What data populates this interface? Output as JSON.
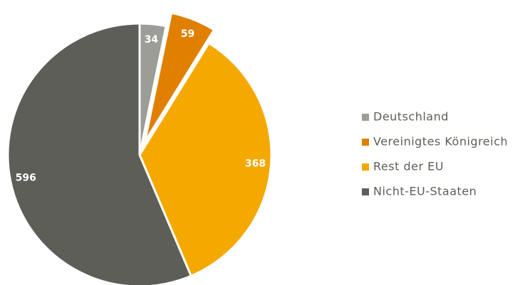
{
  "chart_data": {
    "type": "pie",
    "categories": [
      "Deutschland",
      "Vereinigtes Königreich",
      "Rest der EU",
      "Nicht-EU-Staaten"
    ],
    "values": [
      34,
      59,
      368,
      596
    ],
    "colors": [
      "#9d9d97",
      "#e07f00",
      "#f5a800",
      "#5e5e58"
    ],
    "explode": [
      false,
      true,
      false,
      false
    ],
    "legend": "right"
  }
}
